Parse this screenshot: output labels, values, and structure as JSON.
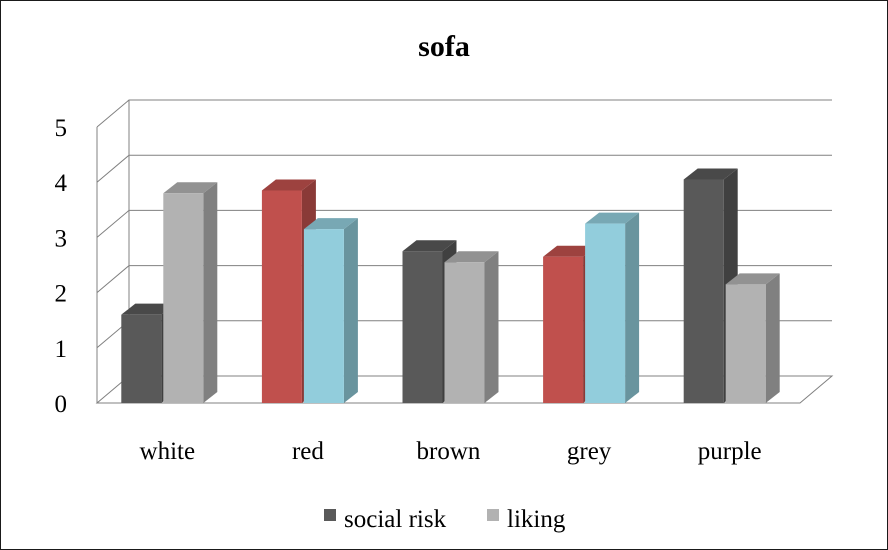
{
  "chart_data": {
    "type": "bar",
    "title": "sofa",
    "categories": [
      "white",
      "red",
      "brown",
      "grey",
      "purple"
    ],
    "series": [
      {
        "name": "social risk",
        "values": [
          1.6,
          3.85,
          2.75,
          2.65,
          4.05
        ]
      },
      {
        "name": "liking",
        "values": [
          3.8,
          3.15,
          2.55,
          3.25,
          2.15
        ]
      }
    ],
    "ylim": [
      0,
      5
    ],
    "yticks": [
      "0",
      "1",
      "2",
      "3",
      "4",
      "5"
    ],
    "grid": true,
    "legend": "bottom",
    "colors": {
      "social_risk_default": "#595959",
      "liking_default": "#b2b2b2",
      "social_risk_highlight": "#c0504d",
      "liking_highlight": "#92cddc"
    },
    "highlighted_categories": [
      "red",
      "grey"
    ]
  }
}
